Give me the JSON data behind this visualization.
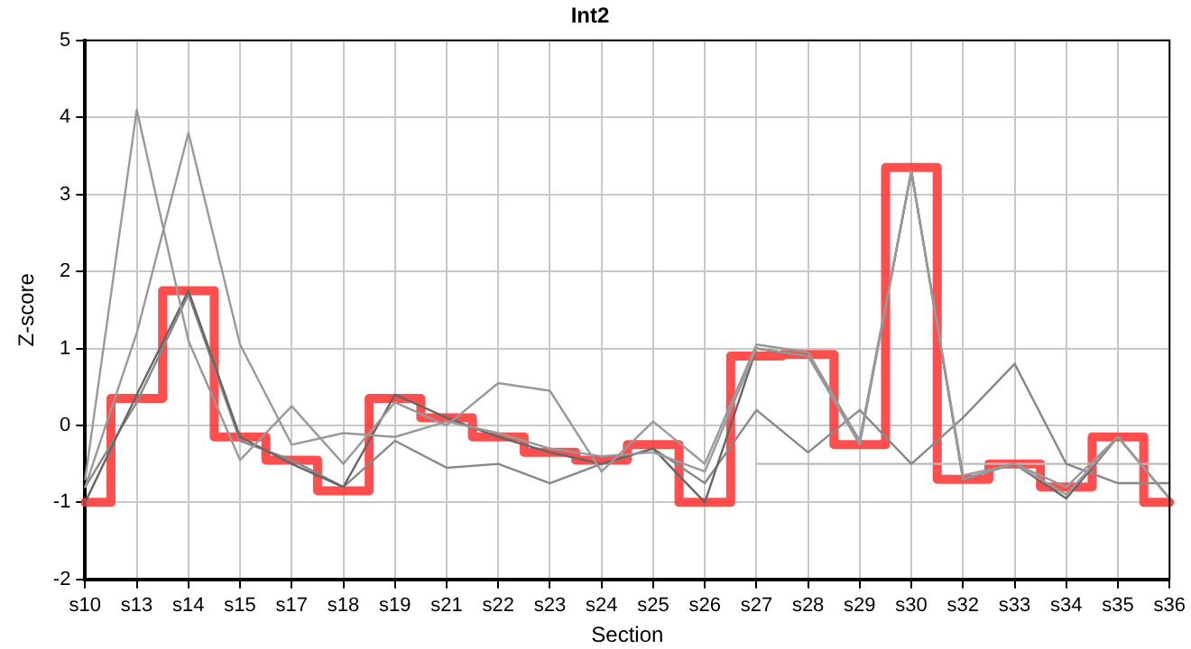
{
  "chart_data": {
    "type": "line",
    "title": "Int2",
    "xlabel": "Section",
    "ylabel": "Z-score",
    "categories": [
      "s10",
      "s13",
      "s14",
      "s15",
      "s17",
      "s18",
      "s19",
      "s21",
      "s22",
      "s23",
      "s24",
      "s25",
      "s26",
      "s27",
      "s28",
      "s29",
      "s30",
      "s32",
      "s33",
      "s34",
      "s35",
      "s36"
    ],
    "series": [
      {
        "color": "#999999",
        "values": [
          -0.7,
          4.1,
          1.1,
          -0.45,
          0.25,
          -0.5,
          0.3,
          0.0,
          0.55,
          0.45,
          -0.6,
          0.05,
          -0.5,
          1.05,
          0.95,
          -0.2,
          3.3,
          -0.65,
          -0.5,
          -0.9,
          -0.15,
          -0.95
        ]
      },
      {
        "color": "#999999",
        "values": [
          -0.8,
          1.2,
          3.8,
          1.05,
          -0.25,
          -0.1,
          -0.15,
          0.05,
          -0.1,
          -0.3,
          -0.4,
          -0.35,
          -0.6,
          1.0,
          0.9,
          -0.25,
          3.3,
          -0.7,
          -0.5,
          -0.8,
          -0.15,
          -0.95
        ]
      },
      {
        "color": "#666666",
        "values": [
          -1.0,
          0.4,
          1.75,
          -0.15,
          -0.5,
          -0.8,
          0.4,
          0.1,
          -0.15,
          -0.35,
          -0.5,
          -0.3,
          -1.0,
          1.0,
          0.9,
          -0.2,
          3.3,
          -0.7,
          -0.5,
          -0.95,
          -0.15,
          -0.95
        ]
      },
      {
        "color": "#888888",
        "values": [
          -0.8,
          0.3,
          1.7,
          -0.2,
          -0.45,
          -0.8,
          -0.2,
          -0.55,
          -0.5,
          -0.75,
          -0.5,
          -0.3,
          -0.75,
          0.2,
          -0.35,
          0.2,
          -0.5,
          0.1,
          0.8,
          -0.5,
          -0.75,
          -0.75
        ]
      },
      {
        "color": "#bbbbbb",
        "values": [
          null,
          null,
          null,
          null,
          null,
          null,
          null,
          null,
          null,
          null,
          null,
          null,
          null,
          -0.5,
          -0.5,
          -0.5,
          -0.5,
          -0.5,
          -0.5,
          -0.5,
          -0.5,
          -0.5
        ]
      },
      {
        "type": "step",
        "color": "#ff3333",
        "values": [
          -1.0,
          0.35,
          1.75,
          -0.15,
          -0.45,
          -0.85,
          0.35,
          0.1,
          -0.15,
          -0.35,
          -0.45,
          -0.25,
          -1.0,
          0.9,
          0.92,
          -0.25,
          3.35,
          -0.7,
          -0.5,
          -0.8,
          -0.15,
          -1.0
        ]
      }
    ],
    "ylim": [
      -2,
      5
    ],
    "yticks": [
      -2,
      -1,
      0,
      1,
      2,
      3,
      4,
      5
    ],
    "grid": true,
    "legend": false
  }
}
